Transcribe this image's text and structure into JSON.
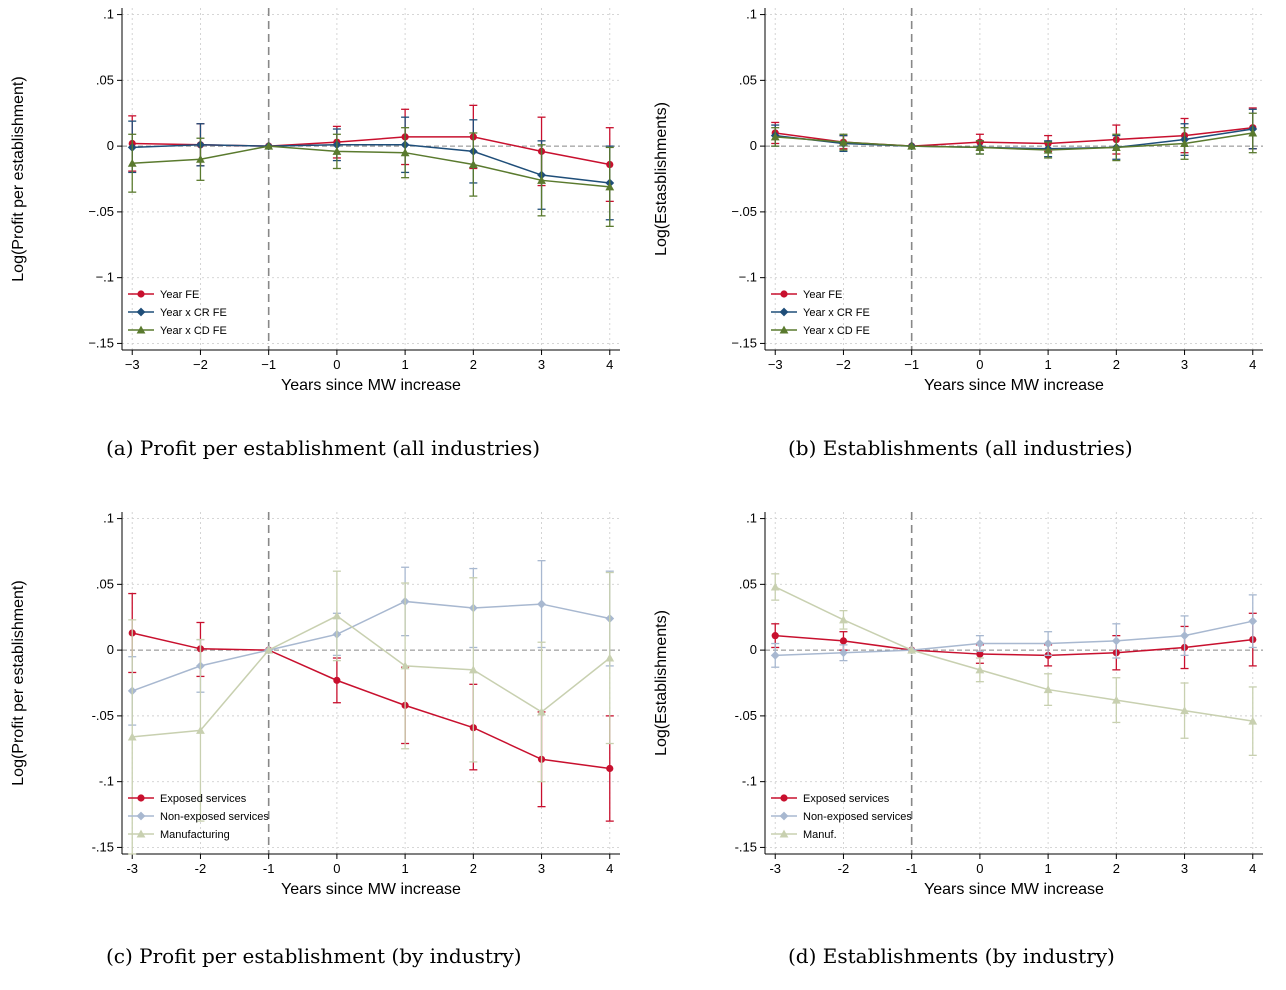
{
  "figure": {
    "captions": [
      "(a) Profit per establishment (all industries)",
      "(b) Establishments (all industries)",
      "(c) Profit per establishment (by industry)",
      "(d) Establishments (by industry)"
    ]
  },
  "colors": {
    "red": "#c8102e",
    "navy": "#1f4e79",
    "olive": "#5a7a2e",
    "lightblue": "#a8b8d0",
    "lightolive": "#c8d0b0",
    "reference_line": "#888888"
  },
  "chart_data": [
    {
      "type": "line",
      "title": "",
      "xlabel": "Years since MW increase",
      "ylabel": "Log(Profit per establishment)",
      "x": [
        -3,
        -2,
        -1,
        0,
        1,
        2,
        3,
        4
      ],
      "x_tick_labels": [
        "−3",
        "−2",
        "−1",
        "0",
        "1",
        "2",
        "3",
        "4"
      ],
      "y_ticks": [
        0.1,
        0.05,
        0,
        -0.05,
        -0.1,
        -0.15
      ],
      "y_tick_labels": [
        ".1",
        ".05",
        "0",
        "−.05",
        "−.1",
        "−.15"
      ],
      "xlim": [
        -3.15,
        4.15
      ],
      "ylim": [
        -0.155,
        0.105
      ],
      "reference_x": -1,
      "reference_y": 0,
      "grid": true,
      "legend_position": "bottom-left",
      "series": [
        {
          "name": "Year FE",
          "color": "#c8102e",
          "marker": "circle",
          "values": [
            0.002,
            0.001,
            0.0,
            0.003,
            0.007,
            0.007,
            -0.004,
            -0.014
          ],
          "ci_low": [
            -0.019,
            -0.015,
            0.0,
            -0.009,
            -0.014,
            -0.017,
            -0.03,
            -0.042
          ],
          "ci_high": [
            0.023,
            0.017,
            0.0,
            0.015,
            0.028,
            0.031,
            0.022,
            0.014
          ]
        },
        {
          "name": "Year x CR FE",
          "color": "#1f4e79",
          "marker": "diamond",
          "values": [
            -0.001,
            0.001,
            0.0,
            0.001,
            0.001,
            -0.004,
            -0.022,
            -0.028
          ],
          "ci_low": [
            -0.02,
            -0.015,
            0.0,
            -0.011,
            -0.02,
            -0.028,
            -0.048,
            -0.056
          ],
          "ci_high": [
            0.019,
            0.017,
            0.0,
            0.013,
            0.022,
            0.02,
            0.004,
            0.0
          ]
        },
        {
          "name": "Year x CD FE",
          "color": "#5a7a2e",
          "marker": "triangle",
          "values": [
            -0.013,
            -0.01,
            0.0,
            -0.004,
            -0.005,
            -0.014,
            -0.026,
            -0.031
          ],
          "ci_low": [
            -0.035,
            -0.026,
            0.0,
            -0.017,
            -0.024,
            -0.038,
            -0.053,
            -0.061
          ],
          "ci_high": [
            0.009,
            0.006,
            0.0,
            0.009,
            0.014,
            0.01,
            0.001,
            -0.001
          ]
        }
      ]
    },
    {
      "type": "line",
      "title": "",
      "xlabel": "Years since MW increase",
      "ylabel": "Log(Estasblishments)",
      "x": [
        -3,
        -2,
        -1,
        0,
        1,
        2,
        3,
        4
      ],
      "x_tick_labels": [
        "−3",
        "−2",
        "−1",
        "0",
        "1",
        "2",
        "3",
        "4"
      ],
      "y_ticks": [
        0.1,
        0.05,
        0,
        -0.05,
        -0.1,
        -0.15
      ],
      "y_tick_labels": [
        ".1",
        ".05",
        "0",
        "−.05",
        "−.1",
        "−.15"
      ],
      "xlim": [
        -3.15,
        4.15
      ],
      "ylim": [
        -0.155,
        0.105
      ],
      "reference_x": -1,
      "reference_y": 0,
      "grid": true,
      "legend_position": "bottom-left",
      "series": [
        {
          "name": "Year FE",
          "color": "#c8102e",
          "marker": "circle",
          "values": [
            0.01,
            0.003,
            0.0,
            0.003,
            0.002,
            0.005,
            0.008,
            0.014
          ],
          "ci_low": [
            0.002,
            -0.002,
            0.0,
            -0.003,
            -0.004,
            -0.006,
            -0.005,
            -0.002
          ],
          "ci_high": [
            0.018,
            0.008,
            0.0,
            0.009,
            0.008,
            0.016,
            0.021,
            0.029
          ]
        },
        {
          "name": "Year x CR FE",
          "color": "#1f4e79",
          "marker": "diamond",
          "values": [
            0.008,
            0.002,
            0.0,
            -0.001,
            -0.002,
            -0.001,
            0.005,
            0.013
          ],
          "ci_low": [
            0.0,
            -0.004,
            0.0,
            -0.006,
            -0.008,
            -0.01,
            -0.007,
            -0.002
          ],
          "ci_high": [
            0.016,
            0.008,
            0.0,
            0.004,
            0.004,
            0.008,
            0.017,
            0.028
          ]
        },
        {
          "name": "Year x CD FE",
          "color": "#5a7a2e",
          "marker": "triangle",
          "values": [
            0.007,
            0.003,
            0.0,
            -0.001,
            -0.003,
            -0.001,
            0.002,
            0.01
          ],
          "ci_low": [
            0.0,
            -0.003,
            0.0,
            -0.006,
            -0.009,
            -0.011,
            -0.01,
            -0.005
          ],
          "ci_high": [
            0.014,
            0.009,
            0.0,
            0.004,
            0.003,
            0.009,
            0.014,
            0.025
          ]
        }
      ]
    },
    {
      "type": "line",
      "title": "",
      "xlabel": "Years since MW increase",
      "ylabel": "Log(Profit per establishment)",
      "x": [
        -3,
        -2,
        -1,
        0,
        1,
        2,
        3,
        4
      ],
      "x_tick_labels": [
        "-3",
        "-2",
        "-1",
        "0",
        "1",
        "2",
        "3",
        "4"
      ],
      "y_ticks": [
        0.1,
        0.05,
        0,
        -0.05,
        -0.1,
        -0.15
      ],
      "y_tick_labels": [
        ".1",
        ".05",
        "0",
        "-.05",
        "-.1",
        "-.15"
      ],
      "xlim": [
        -3.15,
        4.15
      ],
      "ylim": [
        -0.155,
        0.105
      ],
      "reference_x": -1,
      "reference_y": 0,
      "grid": true,
      "legend_position": "bottom-left",
      "series": [
        {
          "name": "Exposed services",
          "color": "#c8102e",
          "marker": "circle",
          "values": [
            0.013,
            0.001,
            0.0,
            -0.023,
            -0.042,
            -0.059,
            -0.083,
            -0.09
          ],
          "ci_low": [
            -0.017,
            -0.02,
            0.0,
            -0.04,
            -0.071,
            -0.091,
            -0.119,
            -0.13
          ],
          "ci_high": [
            0.043,
            0.021,
            0.0,
            -0.006,
            -0.013,
            -0.026,
            -0.047,
            -0.05
          ]
        },
        {
          "name": "Non-exposed services",
          "color": "#a8b8d0",
          "marker": "diamond",
          "values": [
            -0.031,
            -0.012,
            0.0,
            0.012,
            0.037,
            0.032,
            0.035,
            0.024
          ],
          "ci_low": [
            -0.057,
            -0.032,
            0.0,
            -0.004,
            0.011,
            0.002,
            0.002,
            -0.012
          ],
          "ci_high": [
            -0.005,
            0.008,
            0.0,
            0.028,
            0.063,
            0.062,
            0.068,
            0.06
          ]
        },
        {
          "name": "Manufacturing",
          "color": "#c8d0b0",
          "marker": "triangle",
          "values": [
            -0.066,
            -0.061,
            0.0,
            0.026,
            -0.012,
            -0.015,
            -0.047,
            -0.006
          ],
          "ci_low": [
            -0.155,
            -0.13,
            0.0,
            -0.008,
            -0.075,
            -0.085,
            -0.1,
            -0.071
          ],
          "ci_high": [
            0.023,
            0.008,
            0.0,
            0.06,
            0.051,
            0.055,
            0.006,
            0.059
          ]
        }
      ]
    },
    {
      "type": "line",
      "title": "",
      "xlabel": "Years since MW increase",
      "ylabel": "Log(Establishments)",
      "x": [
        -3,
        -2,
        -1,
        0,
        1,
        2,
        3,
        4
      ],
      "x_tick_labels": [
        "-3",
        "-2",
        "-1",
        "0",
        "1",
        "2",
        "3",
        "4"
      ],
      "y_ticks": [
        0.1,
        0.05,
        0,
        -0.05,
        -0.1,
        -0.15
      ],
      "y_tick_labels": [
        ".1",
        ".05",
        "0",
        "-.05",
        "-.1",
        "-.15"
      ],
      "xlim": [
        -3.15,
        4.15
      ],
      "ylim": [
        -0.155,
        0.105
      ],
      "reference_x": -1,
      "reference_y": 0,
      "grid": true,
      "legend_position": "bottom-left",
      "series": [
        {
          "name": "Exposed services",
          "color": "#c8102e",
          "marker": "circle",
          "values": [
            0.011,
            0.007,
            0.0,
            -0.003,
            -0.004,
            -0.002,
            0.002,
            0.008
          ],
          "ci_low": [
            0.002,
            0.0,
            0.0,
            -0.01,
            -0.012,
            -0.015,
            -0.014,
            -0.012
          ],
          "ci_high": [
            0.02,
            0.014,
            0.0,
            0.004,
            0.004,
            0.011,
            0.018,
            0.028
          ]
        },
        {
          "name": "Non-exposed services",
          "color": "#a8b8d0",
          "marker": "diamond",
          "values": [
            -0.004,
            -0.002,
            0.0,
            0.005,
            0.005,
            0.007,
            0.011,
            0.022
          ],
          "ci_low": [
            -0.013,
            -0.008,
            0.0,
            -0.001,
            -0.004,
            -0.006,
            -0.004,
            0.002
          ],
          "ci_high": [
            0.005,
            0.004,
            0.0,
            0.011,
            0.014,
            0.02,
            0.026,
            0.042
          ]
        },
        {
          "name": "Manuf.",
          "color": "#c8d0b0",
          "marker": "triangle",
          "values": [
            0.048,
            0.023,
            0.0,
            -0.015,
            -0.03,
            -0.038,
            -0.046,
            -0.054
          ],
          "ci_low": [
            0.038,
            0.016,
            0.0,
            -0.024,
            -0.042,
            -0.055,
            -0.067,
            -0.08
          ],
          "ci_high": [
            0.058,
            0.03,
            0.0,
            -0.006,
            -0.018,
            -0.021,
            -0.025,
            -0.028
          ]
        }
      ]
    }
  ]
}
